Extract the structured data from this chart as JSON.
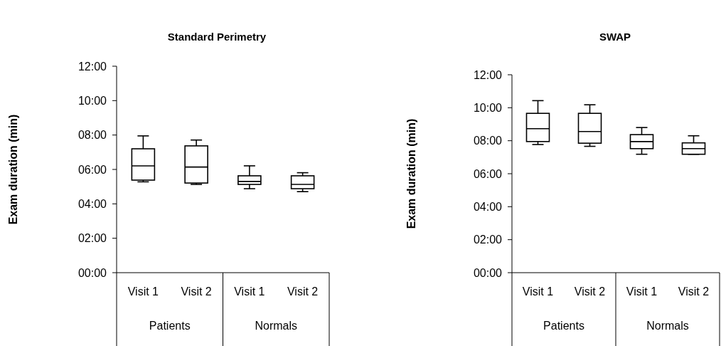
{
  "chart_data": [
    {
      "type": "box",
      "title": "Standard Perimetry",
      "ylabel": "Exam duration (min)",
      "categories": [
        "Visit 1",
        "Visit 2",
        "Visit 1",
        "Visit 2"
      ],
      "annotations": [
        "Patients",
        "Normals"
      ],
      "boxes": [
        {
          "low": 5.28,
          "q1": 5.38,
          "median": 6.21,
          "q3": 7.2,
          "high": 7.95
        },
        {
          "low": 5.13,
          "q1": 5.21,
          "median": 6.14,
          "q3": 7.37,
          "high": 7.71
        },
        {
          "low": 4.88,
          "q1": 5.13,
          "median": 5.3,
          "q3": 5.63,
          "high": 6.21
        },
        {
          "low": 4.71,
          "q1": 4.88,
          "median": 5.13,
          "q3": 5.63,
          "high": 5.81
        }
      ],
      "ylim": [
        0,
        12
      ],
      "yticks": [
        {
          "value": 0,
          "label": "00:00"
        },
        {
          "value": 2,
          "label": "02:00"
        },
        {
          "value": 4,
          "label": "04:00"
        },
        {
          "value": 6,
          "label": "06:00"
        },
        {
          "value": 8,
          "label": "08:00"
        },
        {
          "value": 10,
          "label": "10:00"
        },
        {
          "value": 12,
          "label": "12:00"
        }
      ],
      "grid": false
    },
    {
      "type": "box",
      "title": "SWAP",
      "ylabel": "Exam duration (min)",
      "categories": [
        "Visit 1",
        "Visit 2",
        "Visit 1",
        "Visit 2"
      ],
      "annotations": [
        "Patients",
        "Normals"
      ],
      "boxes": [
        {
          "low": 7.77,
          "q1": 7.95,
          "median": 8.73,
          "q3": 9.66,
          "high": 10.43
        },
        {
          "low": 7.66,
          "q1": 7.85,
          "median": 8.56,
          "q3": 9.66,
          "high": 10.18
        },
        {
          "low": 7.18,
          "q1": 7.52,
          "median": 7.95,
          "q3": 8.37,
          "high": 8.8
        },
        {
          "low": 7.18,
          "q1": 7.18,
          "median": 7.52,
          "q3": 7.87,
          "high": 8.3
        }
      ],
      "ylim": [
        0,
        12
      ],
      "yticks": [
        {
          "value": 0,
          "label": "00:00"
        },
        {
          "value": 2,
          "label": "02:00"
        },
        {
          "value": 4,
          "label": "04:00"
        },
        {
          "value": 6,
          "label": "06:00"
        },
        {
          "value": 8,
          "label": "08:00"
        },
        {
          "value": 10,
          "label": "10:00"
        },
        {
          "value": 12,
          "label": "12:00"
        }
      ],
      "grid": false
    }
  ]
}
